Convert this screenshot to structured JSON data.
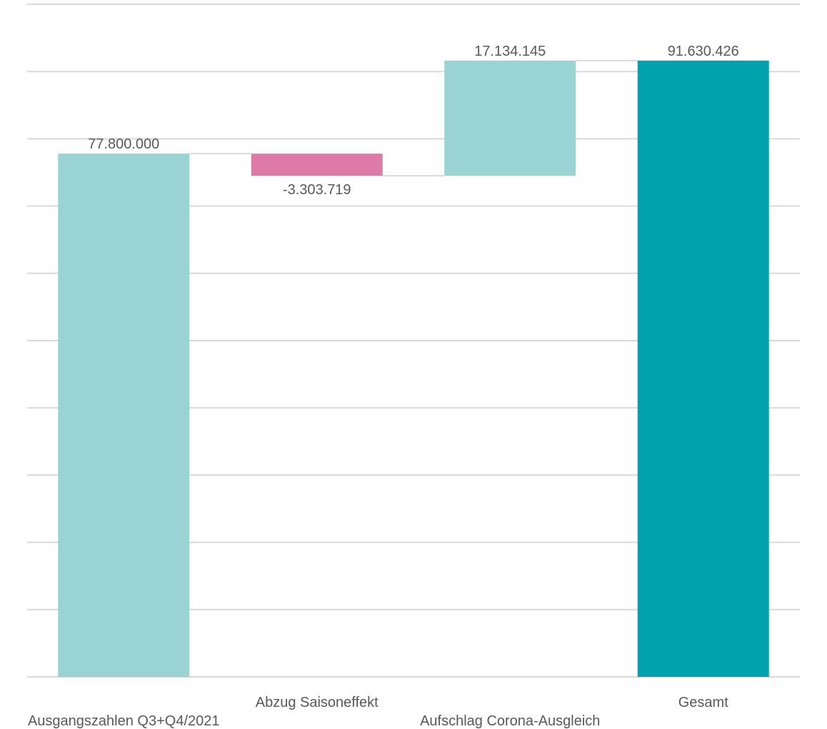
{
  "chart_data": {
    "type": "waterfall",
    "categories": [
      "Ausgangszahlen Q3+Q4/2021",
      "Abzug Saisoneffekt",
      "Aufschlag Corona-Ausgleich",
      "Gesamt"
    ],
    "values": [
      77800000,
      -3303719,
      17134145,
      91630426
    ],
    "value_labels": [
      "77.800.000",
      "-3.303.719",
      "17.134.145",
      "91.630.426"
    ],
    "measure": [
      "absolute",
      "relative",
      "relative",
      "total"
    ],
    "ylim": [
      0,
      100000000
    ],
    "grid": true,
    "colors": {
      "start": "#9ad3d4",
      "decrease": "#de7aa8",
      "increase": "#9ad3d4",
      "total": "#00a3ad",
      "grid": "#d9d9d9",
      "connector": "#d0d0d0",
      "text": "#595959"
    }
  }
}
